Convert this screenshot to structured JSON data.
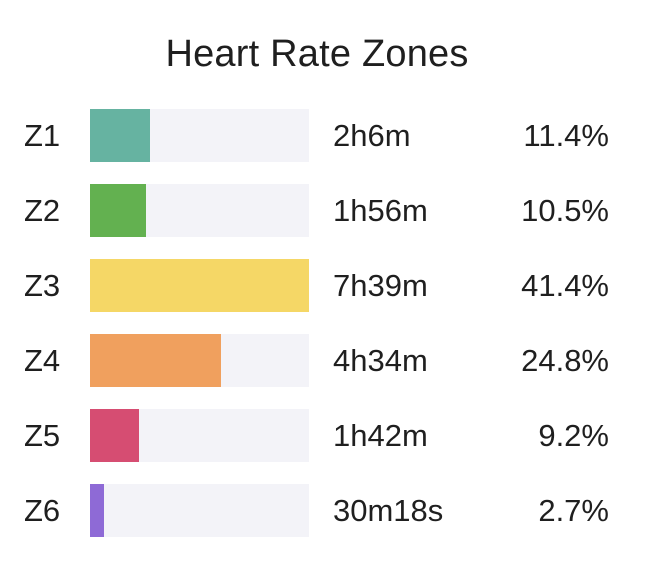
{
  "chart_data": {
    "type": "bar",
    "title": "Heart Rate Zones",
    "categories": [
      "Z1",
      "Z2",
      "Z3",
      "Z4",
      "Z5",
      "Z6"
    ],
    "durations": [
      "2h6m",
      "1h56m",
      "7h39m",
      "4h34m",
      "1h42m",
      "30m18s"
    ],
    "percent_labels": [
      "11.4%",
      "10.5%",
      "41.4%",
      "24.8%",
      "9.2%",
      "2.7%"
    ],
    "values": [
      11.4,
      10.5,
      41.4,
      24.8,
      9.2,
      2.7
    ],
    "scale_max": 41.4,
    "colors": [
      "#66b3a1",
      "#63b150",
      "#f5d766",
      "#f0a05e",
      "#d64d72",
      "#8e6ad6"
    ],
    "track_color": "#f3f3f8",
    "xlabel": "",
    "ylabel": ""
  }
}
